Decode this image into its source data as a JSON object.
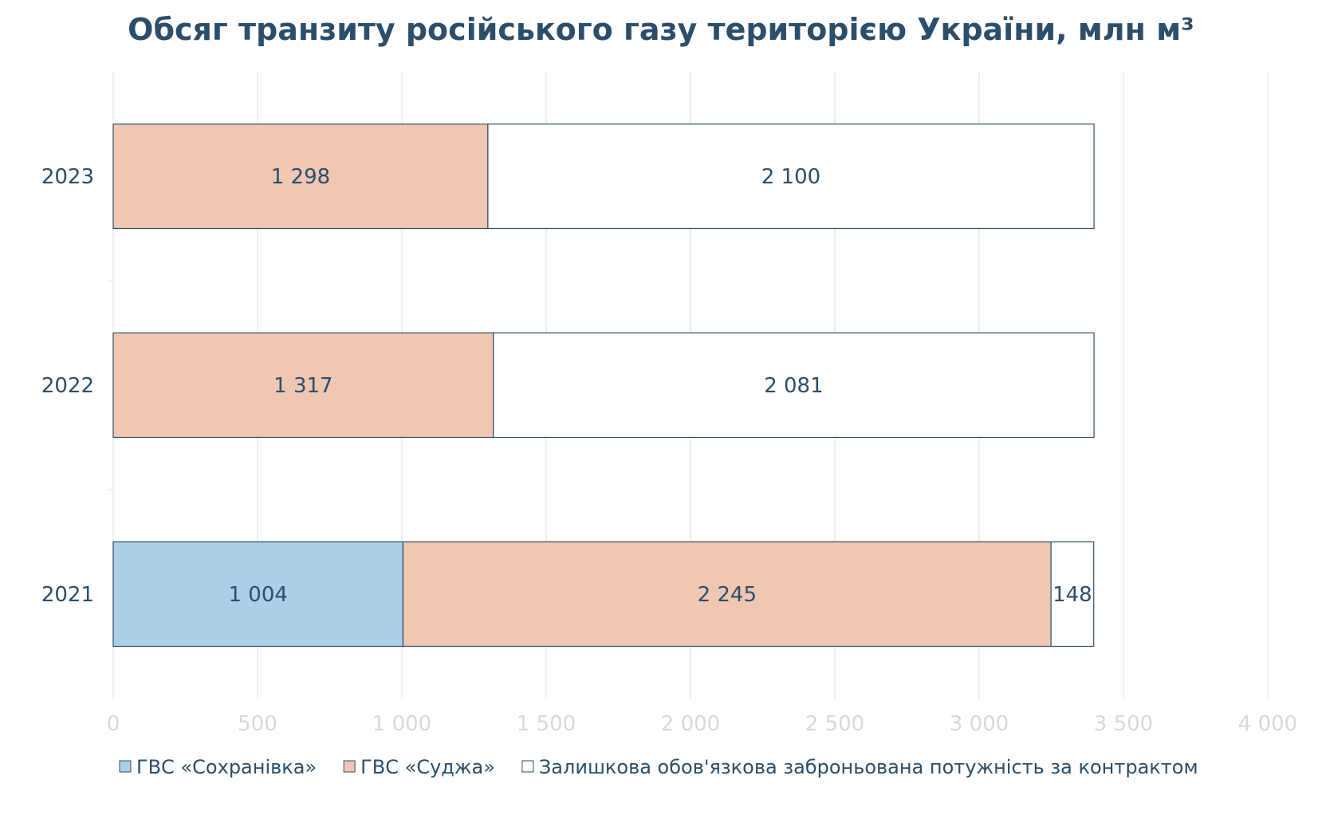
{
  "chart_data": {
    "type": "bar",
    "orientation": "horizontal",
    "stacked": true,
    "title": "Обсяг транзиту російського газу територією України, млн м³",
    "xlabel": "",
    "ylabel": "",
    "categories": [
      "2023",
      "2022",
      "2021"
    ],
    "series": [
      {
        "name": "ГВС «Сохранівка»",
        "values": [
          0,
          0,
          1004
        ],
        "labels": [
          "",
          "",
          "1 004"
        ],
        "color": "#a9cfe9"
      },
      {
        "name": "ГВС «Суджа»",
        "values": [
          1298,
          1317,
          2245
        ],
        "labels": [
          "1 298",
          "1 317",
          "2 245"
        ],
        "color": "#f0c7b2"
      },
      {
        "name": "Залишкова обов'язкова заброньована потужність за контрактом",
        "values": [
          2100,
          2081,
          148
        ],
        "labels": [
          "2 100",
          "2 081",
          "148"
        ],
        "color": "#ffffff"
      }
    ],
    "xlim": [
      0,
      4000
    ],
    "xticks": [
      0,
      500,
      1000,
      1500,
      2000,
      2500,
      3000,
      3500,
      4000
    ],
    "xtick_labels": [
      "0",
      "500",
      "1 000",
      "1 500",
      "2 000",
      "2 500",
      "3 000",
      "3 500",
      "4 000"
    ],
    "grid": true,
    "legend_position": "bottom",
    "bar_border_color": "#2b4e6b",
    "text_color": "#2b4e6b",
    "grid_color": "#ececec"
  }
}
